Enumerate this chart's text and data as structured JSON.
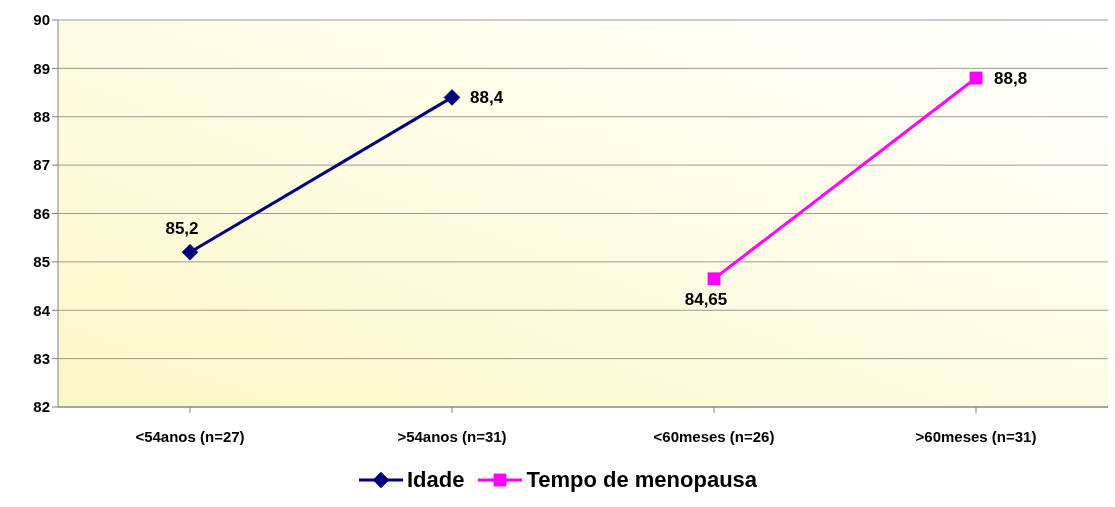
{
  "chart_data": {
    "type": "line",
    "categories": [
      "<54anos (n=27)",
      ">54anos (n=31)",
      "<60meses (n=26)",
      ">60meses (n=31)"
    ],
    "series": [
      {
        "name": "Idade",
        "color": "#000080",
        "marker": "diamond",
        "values": [
          85.2,
          88.4,
          null,
          null
        ],
        "value_labels": [
          "85,2",
          "88,4",
          null,
          null
        ]
      },
      {
        "name": "Tempo de menopausa",
        "color": "#ff00ff",
        "marker": "square",
        "values": [
          null,
          null,
          84.65,
          88.8
        ],
        "value_labels": [
          null,
          null,
          "84,65",
          "88,8"
        ]
      }
    ],
    "ylim": [
      82,
      90
    ],
    "yticks": [
      82,
      83,
      84,
      85,
      86,
      87,
      88,
      89,
      90
    ],
    "grid": "y",
    "legend": "bottom"
  }
}
